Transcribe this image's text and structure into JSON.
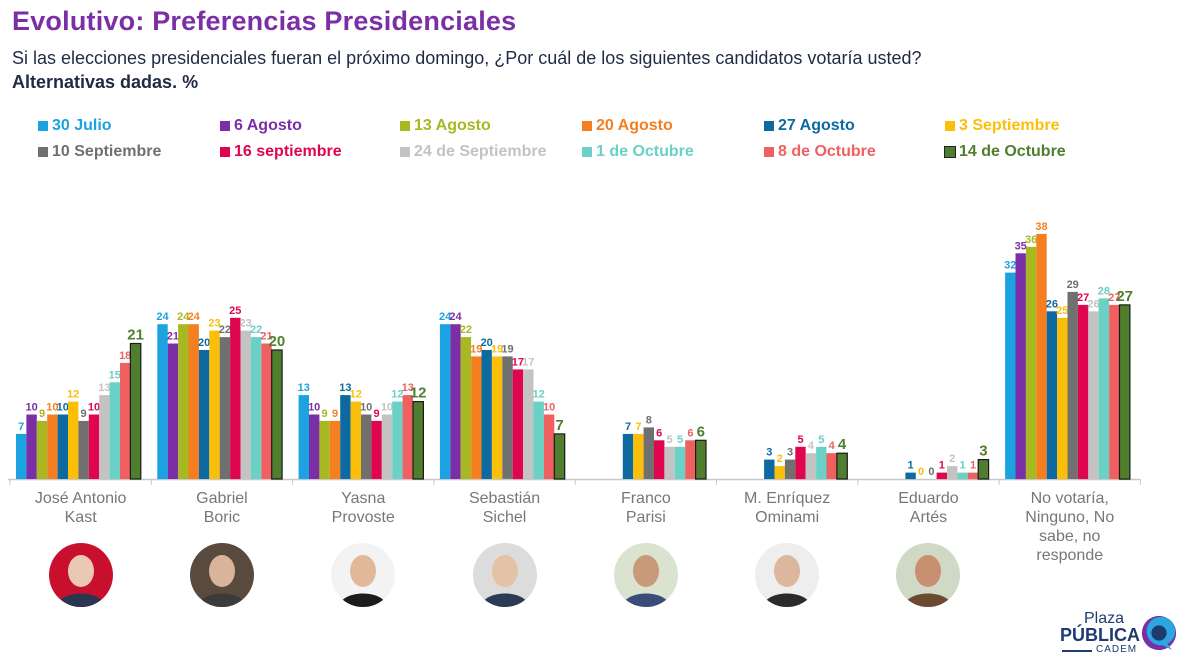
{
  "header": {
    "title": "Evolutivo: Preferencias Presidenciales",
    "subtitle": "Si las elecciones presidenciales fueran el próximo domingo, ¿Por cuál de los siguientes candidatos votaría usted?",
    "subtitle2": "Alternativas dadas. %"
  },
  "logo": {
    "line1": "Plaza",
    "line2": "PÚBLICA",
    "line3": "CADEM"
  },
  "chart_data": {
    "type": "bar",
    "title": "Evolutivo: Preferencias Presidenciales",
    "xlabel": "",
    "ylabel": "%",
    "ylim": [
      0,
      40
    ],
    "grid": false,
    "legend_position": "top",
    "categories": [
      "José Antonio Kast",
      "Gabriel Boric",
      "Yasna Provoste",
      "Sebastián Sichel",
      "Franco Parisi",
      "M. Enríquez Ominami",
      "Eduardo Artés",
      "No votaría, Ninguno, No sabe, no responde"
    ],
    "category_lines": [
      [
        "José Antonio",
        "Kast"
      ],
      [
        "Gabriel",
        "Boric"
      ],
      [
        "Yasna",
        "Provoste"
      ],
      [
        "Sebastián",
        "Sichel"
      ],
      [
        "Franco",
        "Parisi"
      ],
      [
        "M. Enríquez",
        "Ominami"
      ],
      [
        "Eduardo",
        "Artés"
      ],
      [
        "No votaría,",
        "Ninguno, No",
        "sabe, no",
        "responde"
      ]
    ],
    "series": [
      {
        "name": "30 Julio",
        "color": "#1aa3e0",
        "values": [
          7,
          24,
          13,
          24,
          null,
          null,
          null,
          32
        ]
      },
      {
        "name": "6 Agosto",
        "color": "#7b2fa6",
        "values": [
          10,
          21,
          10,
          24,
          null,
          null,
          null,
          35
        ]
      },
      {
        "name": "13 Agosto",
        "color": "#a8b820",
        "values": [
          9,
          24,
          9,
          22,
          null,
          null,
          null,
          36
        ]
      },
      {
        "name": "20 Agosto",
        "color": "#f57f20",
        "values": [
          10,
          24,
          9,
          19,
          null,
          null,
          null,
          38
        ]
      },
      {
        "name": "27 Agosto",
        "color": "#0d6aa0",
        "values": [
          10,
          20,
          13,
          20,
          7,
          3,
          1,
          26
        ]
      },
      {
        "name": "3 Septiembre",
        "color": "#fbbf0a",
        "values": [
          12,
          23,
          12,
          19,
          7,
          2,
          0,
          25
        ]
      },
      {
        "name": "10 Septiembre",
        "color": "#707070",
        "values": [
          9,
          22,
          10,
          19,
          8,
          3,
          0,
          29
        ]
      },
      {
        "name": "16 septiembre",
        "color": "#e0064e",
        "values": [
          10,
          25,
          9,
          17,
          6,
          5,
          1,
          27
        ]
      },
      {
        "name": "24 de Septiembre",
        "color": "#c3c3c3",
        "values": [
          13,
          23,
          10,
          17,
          5,
          4,
          2,
          26
        ]
      },
      {
        "name": "1 de Octubre",
        "color": "#69d1c5",
        "values": [
          15,
          22,
          12,
          12,
          5,
          5,
          1,
          28
        ]
      },
      {
        "name": "8 de Octubre",
        "color": "#f06060",
        "values": [
          18,
          21,
          13,
          10,
          6,
          4,
          1,
          27
        ]
      },
      {
        "name": "14 de Octubre",
        "color": "#4f7f2e",
        "values": [
          21,
          20,
          12,
          7,
          6,
          4,
          3,
          27
        ]
      }
    ]
  }
}
